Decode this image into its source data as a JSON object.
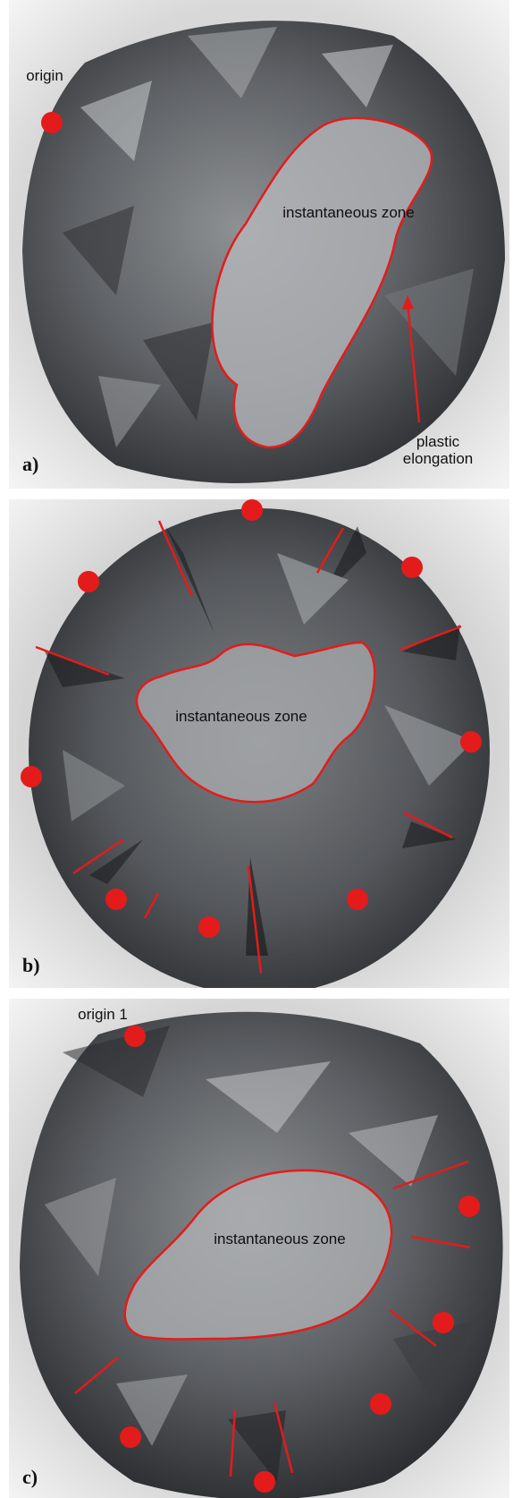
{
  "panels": [
    {
      "id": "a",
      "letter": "a)",
      "labels": {
        "origin": "origin",
        "zone": "instantaneous zone",
        "plastic": "plastic elongation"
      }
    },
    {
      "id": "b",
      "letter": "b)",
      "labels": {
        "zone": "instantaneous zone"
      }
    },
    {
      "id": "c",
      "letter": "c)",
      "labels": {
        "origin": "origin 1",
        "zone": "instantaneous zone"
      }
    }
  ],
  "colors": {
    "annotation": "#e41b1b",
    "background": "#eeeeee",
    "metal_dark": "#3f4144",
    "metal_light": "#b7babd"
  }
}
